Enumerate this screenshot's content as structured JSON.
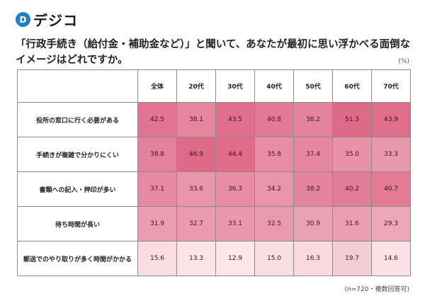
{
  "brand": {
    "logo_letter": "D",
    "name": "デジコ"
  },
  "title": "「行政手続き（給付金・補助金など）」と聞いて、あなたが最初に思い浮かべる面倒なイメージはどれですか。",
  "unit": "(%)",
  "note": "(n=720・複数回答可)",
  "chart_data": {
    "type": "heatmap",
    "title": "「行政手続き（給付金・補助金など）」と聞いて、あなたが最初に思い浮かべる面倒なイメージはどれですか。",
    "columns": [
      "全体",
      "20代",
      "30代",
      "40代",
      "50代",
      "60代",
      "70代"
    ],
    "rows": [
      {
        "label": "役所の窓口に行く必要がある",
        "values": [
          42.5,
          38.1,
          43.5,
          40.8,
          38.2,
          51.3,
          43.9
        ]
      },
      {
        "label": "手続きが複雑で分かりにくい",
        "values": [
          38.8,
          46.9,
          44.4,
          35.8,
          37.4,
          35.0,
          33.3
        ]
      },
      {
        "label": "書類への記入・押印が多い",
        "values": [
          37.1,
          33.6,
          36.3,
          34.2,
          38.2,
          40.2,
          40.7
        ]
      },
      {
        "label": "待ち時間が長い",
        "values": [
          31.9,
          32.7,
          33.1,
          32.5,
          30.9,
          31.6,
          29.3
        ]
      },
      {
        "label": "郵送でのやり取りが多く時間がかかる",
        "values": [
          15.6,
          13.3,
          12.9,
          15.0,
          16.3,
          19.7,
          14.6
        ]
      }
    ],
    "color_low": "#fbe6ec",
    "color_high": "#df6a88"
  }
}
